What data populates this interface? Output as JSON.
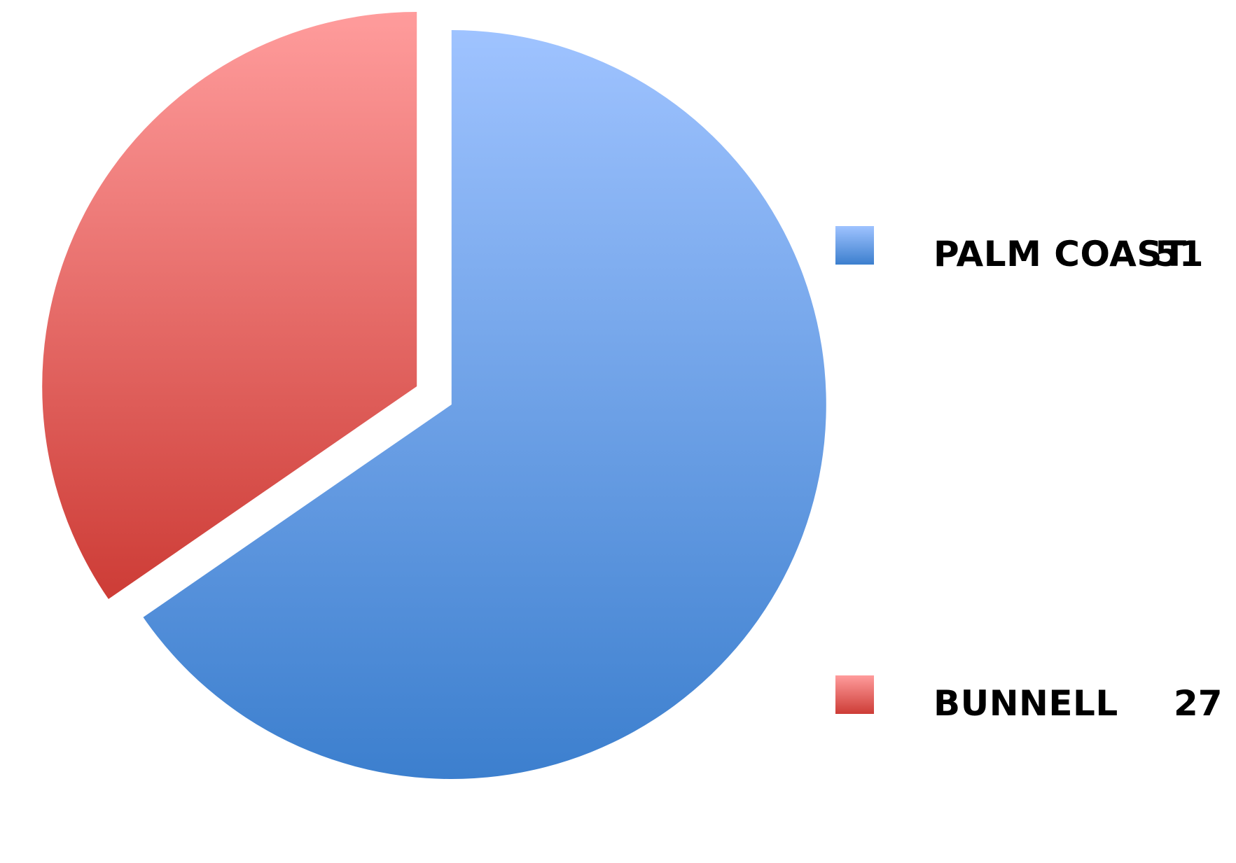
{
  "chart_data": {
    "type": "pie",
    "slices": [
      {
        "label": "PALM COAST",
        "value": 51,
        "color_top": "#9fc3ff",
        "color_bottom": "#3c7fce",
        "exploded": true
      },
      {
        "label": "BUNNELL",
        "value": 27,
        "color_top": "#ff9c9c",
        "color_bottom": "#cd3c36",
        "exploded": true
      }
    ],
    "legend": {
      "placement": "right",
      "items": [
        {
          "label": "PALM COAST",
          "value": "51",
          "swatch_top": "#9fc3ff",
          "swatch_bottom": "#3c7fce"
        },
        {
          "label": "BUNNELL",
          "value": "27",
          "swatch_top": "#ff9c9c",
          "swatch_bottom": "#cd3c36"
        }
      ]
    }
  }
}
